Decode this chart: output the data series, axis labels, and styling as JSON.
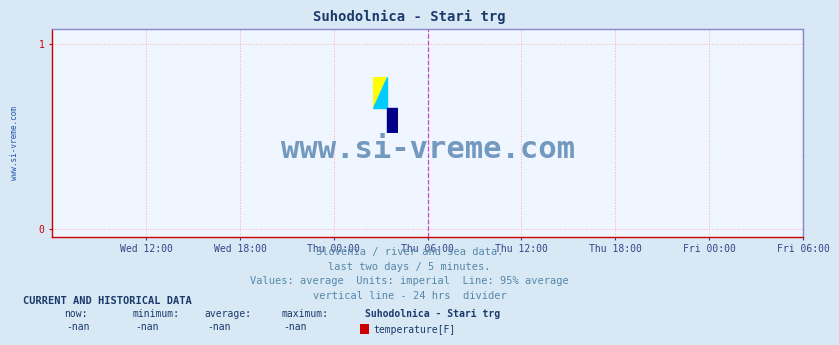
{
  "title": "Suhodolnica - Stari trg",
  "title_color": "#1a3a6b",
  "title_fontsize": 10,
  "bg_color": "#d8e8f4",
  "plot_bg_color": "#f0f6ff",
  "watermark_text": "www.si-vreme.com",
  "watermark_color": "#4a7aaa",
  "watermark_fontsize": 22,
  "yticks": [
    0,
    1
  ],
  "ylim": [
    -0.04,
    1.08
  ],
  "xlim": [
    0,
    576
  ],
  "xtick_labels": [
    "Wed 12:00",
    "Wed 18:00",
    "Thu 00:00",
    "Thu 06:00",
    "Thu 12:00",
    "Thu 18:00",
    "Fri 00:00",
    "Fri 06:00"
  ],
  "xtick_positions": [
    72,
    144,
    216,
    288,
    360,
    432,
    504,
    576
  ],
  "grid_color": "#ffaaaa",
  "grid_style": ":",
  "grid_linewidth": 0.7,
  "axis_color_left": "#cc0000",
  "axis_color_bottom": "#cc0000",
  "axis_color_top": "#8888cc",
  "axis_color_right": "#8888cc",
  "xtick_color": "#334488",
  "ytick_color": "#cc0000",
  "vertical_line_x": 288,
  "vertical_line_color": "#cc44cc",
  "vertical_line2_x": 576,
  "vertical_line2_color": "#cc44cc",
  "sidebar_text": "www.si-vreme.com",
  "sidebar_color": "#2255aa",
  "footer_lines": [
    "Slovenia / river and sea data.",
    "last two days / 5 minutes.",
    "Values: average  Units: imperial  Line: 95% average",
    "vertical line - 24 hrs  divider"
  ],
  "footer_color": "#5588aa",
  "footer_fontsize": 7.5,
  "current_label": "CURRENT AND HISTORICAL DATA",
  "current_label_color": "#1a3a6b",
  "current_label_fontsize": 7.5,
  "table_headers": [
    "now:",
    "minimum:",
    "average:",
    "maximum:",
    "Suhodolnica - Stari trg"
  ],
  "table_values": [
    "-nan",
    "-nan",
    "-nan",
    "-nan"
  ],
  "table_color": "#1a3a6b",
  "legend_color_box": "#cc0000",
  "legend_label": "temperature[F]"
}
